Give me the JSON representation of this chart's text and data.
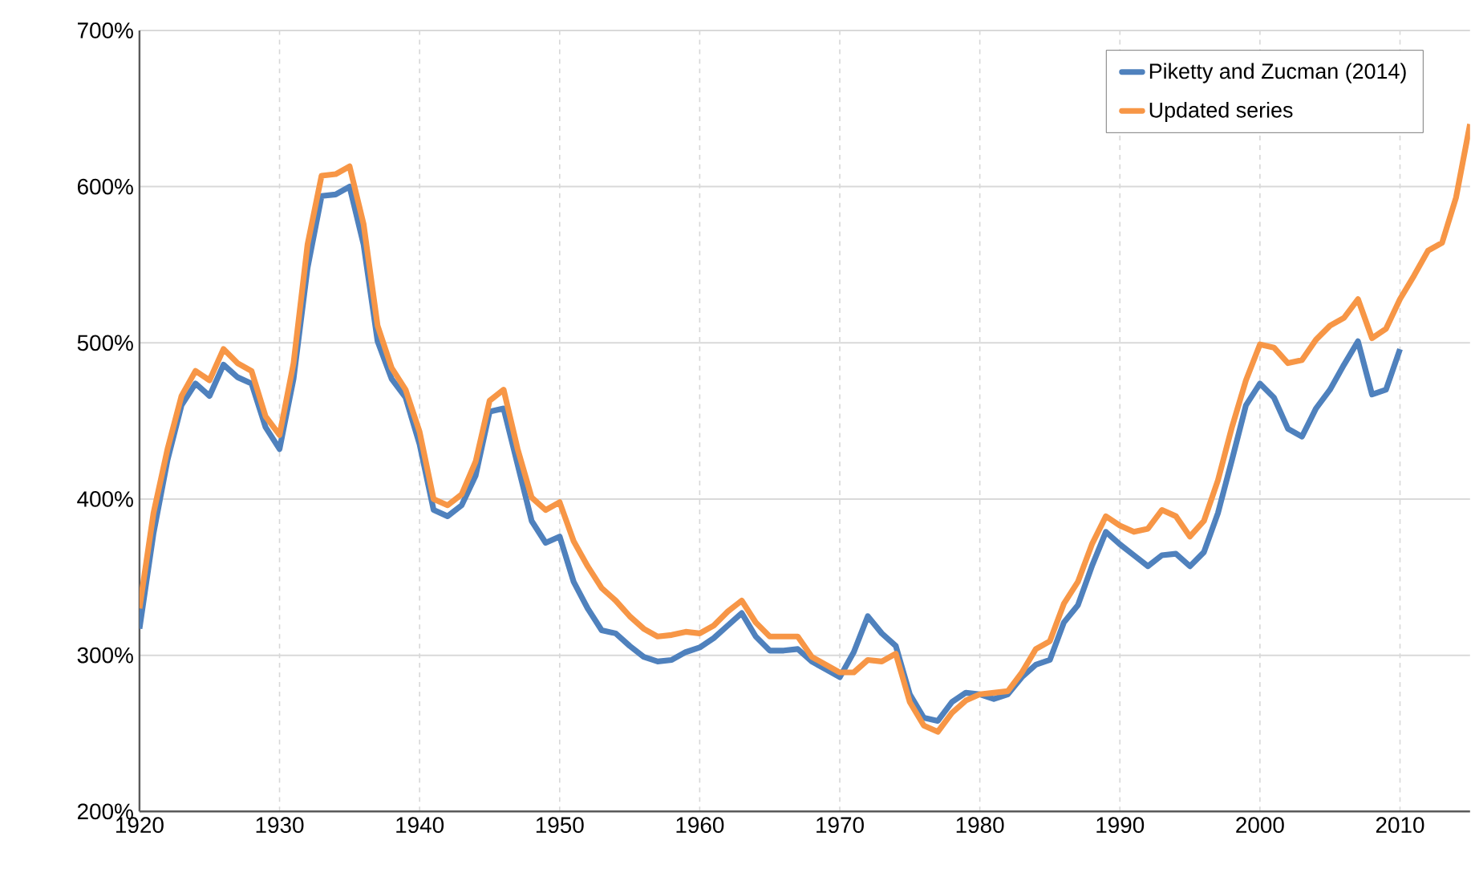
{
  "chart_data": {
    "type": "line",
    "x": [
      1920,
      1921,
      1922,
      1923,
      1924,
      1925,
      1926,
      1927,
      1928,
      1929,
      1930,
      1931,
      1932,
      1933,
      1934,
      1935,
      1936,
      1937,
      1938,
      1939,
      1940,
      1941,
      1942,
      1943,
      1944,
      1945,
      1946,
      1947,
      1948,
      1949,
      1950,
      1951,
      1952,
      1953,
      1954,
      1955,
      1956,
      1957,
      1958,
      1959,
      1960,
      1961,
      1962,
      1963,
      1964,
      1965,
      1966,
      1967,
      1968,
      1969,
      1970,
      1971,
      1972,
      1973,
      1974,
      1975,
      1976,
      1977,
      1978,
      1979,
      1980,
      1981,
      1982,
      1983,
      1984,
      1985,
      1986,
      1987,
      1988,
      1989,
      1990,
      1991,
      1992,
      1993,
      1994,
      1995,
      1996,
      1997,
      1998,
      1999,
      2000,
      2001,
      2002,
      2003,
      2004,
      2005,
      2006,
      2007,
      2008,
      2009,
      2010,
      2011,
      2012,
      2013,
      2014,
      2015
    ],
    "series": [
      {
        "name": "Piketty and Zucman (2014)",
        "color": "#4f81bd",
        "values": [
          317,
          378,
          425,
          460,
          474,
          466,
          486,
          478,
          474,
          446,
          432,
          477,
          548,
          594,
          595,
          600,
          563,
          501,
          477,
          465,
          435,
          393,
          389,
          396,
          415,
          456,
          458,
          422,
          386,
          372,
          376,
          347,
          330,
          316,
          314,
          306,
          299,
          296,
          297,
          302,
          305,
          311,
          319,
          327,
          312,
          303,
          303,
          304,
          296,
          291,
          286,
          302,
          325,
          314,
          306,
          275,
          260,
          258,
          270,
          276,
          275,
          272,
          275,
          286,
          294,
          297,
          321,
          332,
          357,
          379,
          371,
          364,
          357,
          364,
          365,
          357,
          366,
          391,
          425,
          460,
          474,
          465,
          445,
          440,
          458,
          470,
          486,
          501,
          467,
          470,
          496,
          null,
          null,
          null,
          null,
          null
        ]
      },
      {
        "name": "Updated series",
        "color": "#f79646",
        "values": [
          330,
          391,
          432,
          466,
          482,
          476,
          496,
          487,
          482,
          453,
          441,
          487,
          563,
          607,
          608,
          613,
          576,
          511,
          484,
          470,
          443,
          400,
          396,
          403,
          424,
          463,
          470,
          432,
          401,
          393,
          398,
          373,
          357,
          343,
          335,
          325,
          317,
          312,
          313,
          315,
          314,
          319,
          328,
          335,
          321,
          312,
          312,
          312,
          299,
          294,
          289,
          289,
          297,
          296,
          301,
          270,
          255,
          251,
          263,
          271,
          275,
          276,
          277,
          289,
          304,
          309,
          333,
          347,
          371,
          389,
          383,
          379,
          381,
          393,
          389,
          376,
          386,
          412,
          446,
          476,
          499,
          497,
          487,
          489,
          502,
          511,
          516,
          528,
          503,
          509,
          528,
          543,
          559,
          564,
          593,
          640
        ]
      }
    ],
    "xlim": [
      1920,
      2015
    ],
    "ylim": [
      200,
      700
    ],
    "xticks": [
      1920,
      1930,
      1940,
      1950,
      1960,
      1970,
      1980,
      1990,
      2000,
      2010
    ],
    "yticks": [
      {
        "value": 200,
        "label": "200%"
      },
      {
        "value": 300,
        "label": "300%"
      },
      {
        "value": 400,
        "label": "400%"
      },
      {
        "value": 500,
        "label": "500%"
      },
      {
        "value": 600,
        "label": "600%"
      },
      {
        "value": 700,
        "label": "700%"
      }
    ],
    "grid": true,
    "legend": "top right",
    "marker": "none",
    "line_style": "solid"
  }
}
